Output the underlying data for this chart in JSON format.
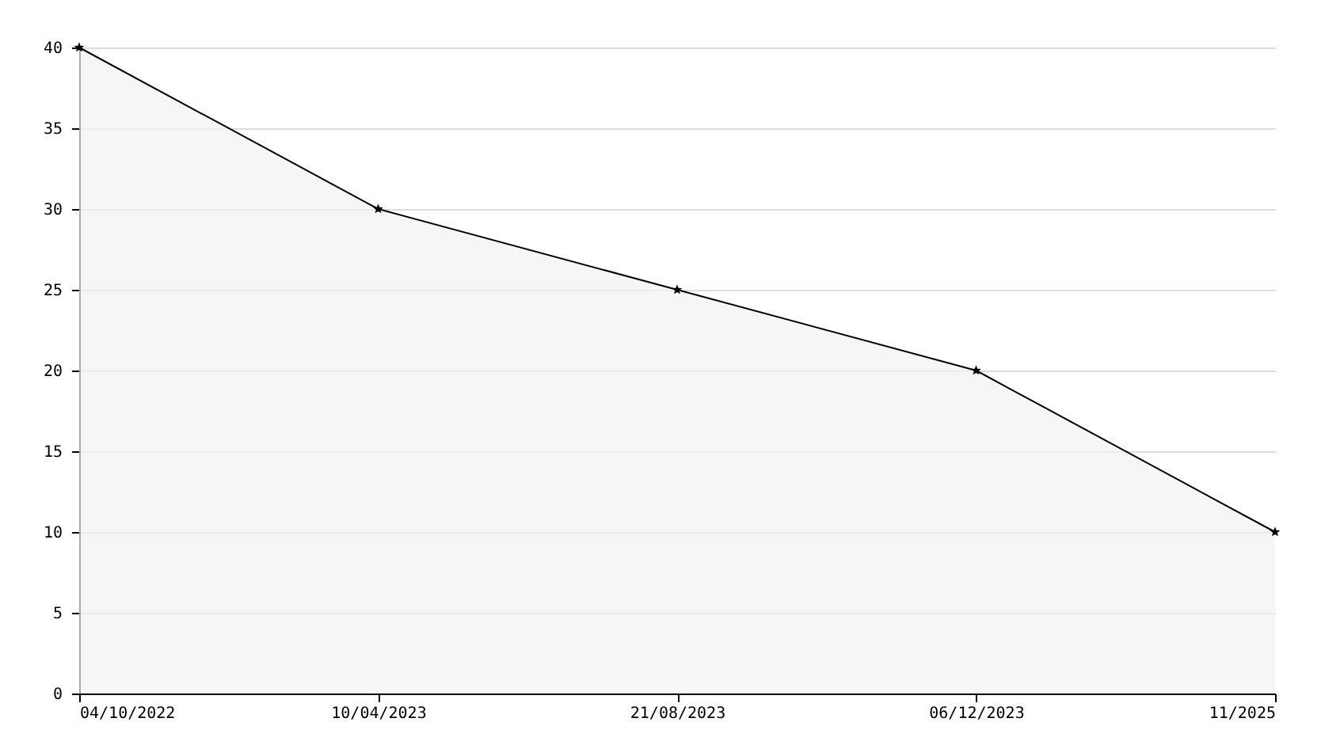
{
  "chart_data": {
    "type": "area",
    "categories": [
      "04/10/2022",
      "10/04/2023",
      "21/08/2023",
      "06/12/2023",
      "11/2025"
    ],
    "series": [
      {
        "color": "#f2f2f2",
        "values": [
          40,
          30,
          25,
          20,
          10
        ]
      }
    ],
    "ylim": [
      0,
      40
    ],
    "yticks": [
      0,
      5,
      10,
      15,
      20,
      25,
      30,
      35,
      40
    ],
    "grid": "y",
    "marker": "star"
  }
}
